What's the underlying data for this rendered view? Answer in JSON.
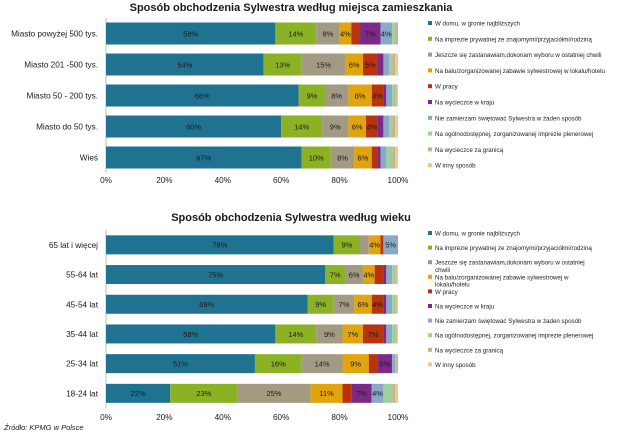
{
  "source": "Źródło: KPMG w Polsce",
  "chart_data": [
    {
      "type": "bar",
      "orientation": "horizontal",
      "stacked": true,
      "title": "Sposób obchodzenia Sylwestra według miejsca zamieszkania",
      "categories": [
        "Miasto powyżej 500 tys.",
        "Miasto 201 -500 tys.",
        "Miasto 50 - 200 tys.",
        "Miasto do 50 tys.",
        "Wieś"
      ],
      "xlim": [
        0,
        100
      ],
      "xticks": [
        "0%",
        "20%",
        "40%",
        "60%",
        "80%",
        "100%"
      ],
      "legend_position": "right",
      "series": [
        {
          "name": "W domu, w gronie najbliższych",
          "color": "#1f7391",
          "values": [
            58,
            54,
            66,
            60,
            67
          ],
          "labels": [
            "58%",
            "54%",
            "66%",
            "60%",
            "67%"
          ]
        },
        {
          "name": "Na imprezie prywatnej ze znajomymi/przyjaciółmi/rodziną",
          "color": "#8bb124",
          "values": [
            14,
            13,
            9,
            14,
            10
          ],
          "labels": [
            "14%",
            "13%",
            "9%",
            "14%",
            "10%"
          ]
        },
        {
          "name": "Jeszcze się zastanawiam,dokonam wyboru w ostatniej chwili",
          "color": "#a29a82",
          "values": [
            8,
            15,
            8,
            9,
            8
          ],
          "labels": [
            "8%",
            "15%",
            "8%",
            "9%",
            "8%"
          ]
        },
        {
          "name": "Na balu/zorganizowanej zabawie sylwestrowej w lokalu/hotelu",
          "color": "#e0a40f",
          "values": [
            4,
            6,
            8,
            6,
            6
          ],
          "labels": [
            "4%",
            "6%",
            "8%",
            "6%",
            "6%"
          ]
        },
        {
          "name": "W pracy",
          "color": "#b8330e",
          "values": [
            3,
            5,
            4,
            4,
            2
          ],
          "labels": [
            "",
            "5%",
            "4%",
            "4%",
            ""
          ]
        },
        {
          "name": "Na wycieczce w kraju",
          "color": "#7b2a87",
          "values": [
            7,
            2,
            1,
            2,
            1
          ],
          "labels": [
            "7%",
            "",
            "",
            "",
            ""
          ]
        },
        {
          "name": "Nie zamierzam świętować Sylwestra w żaden sposób",
          "color": "#8aa9c6",
          "values": [
            4,
            2,
            2,
            2,
            2
          ],
          "labels": [
            "4%",
            "",
            "",
            "",
            ""
          ]
        },
        {
          "name": "Na ogólnodostępnej, zorganizowanej imprezie plenerowej",
          "color": "#9fd09c",
          "values": [
            1,
            1,
            1,
            1,
            2
          ],
          "labels": [
            "",
            "",
            "",
            "",
            ""
          ]
        },
        {
          "name": "Na wycieczce za granicą",
          "color": "#c4b591",
          "values": [
            1,
            1,
            0.5,
            1,
            1
          ],
          "labels": [
            "",
            "",
            "",
            "",
            ""
          ]
        },
        {
          "name": "W inny sposób",
          "color": "#f4c98c",
          "values": [
            0,
            1,
            0.5,
            1,
            1
          ],
          "labels": [
            "",
            "",
            "",
            "",
            ""
          ]
        }
      ]
    },
    {
      "type": "bar",
      "orientation": "horizontal",
      "stacked": true,
      "title": "Sposób obchodzenia Sylwestra według wieku",
      "categories": [
        "65 lat i więcej",
        "55-64 lat",
        "45-54 lat",
        "35-44 lat",
        "25-34 lat",
        "18-24 lat"
      ],
      "xlim": [
        0,
        100
      ],
      "xticks": [
        "0%",
        "20%",
        "40%",
        "60%",
        "80%",
        "100%"
      ],
      "legend_position": "right",
      "series": [
        {
          "name": "W domu, w gronie najbliższych",
          "color": "#1f7391",
          "values": [
            78,
            75,
            69,
            58,
            51,
            22
          ],
          "labels": [
            "78%",
            "75%",
            "69%",
            "58%",
            "51%",
            "22%"
          ]
        },
        {
          "name": "Na imprezie prywatnej ze znajomymi/przyjaciółmi/rodziną",
          "color": "#8bb124",
          "values": [
            9,
            7,
            9,
            14,
            16,
            23
          ],
          "labels": [
            "9%",
            "7%",
            "9%",
            "14%",
            "16%",
            "23%"
          ]
        },
        {
          "name": "Jeszcze się zastanawiam,dokonam wyboru w ostatniej chwili",
          "color": "#a29a82",
          "values": [
            3,
            6,
            7,
            9,
            14,
            25
          ],
          "labels": [
            "",
            "6%",
            "7%",
            "9%",
            "14%",
            "25%"
          ]
        },
        {
          "name": "Na balu/zorganizowanej zabawie sylwestrowej w lokalu/hotelu",
          "color": "#e0a40f",
          "values": [
            4,
            4,
            6,
            7,
            9,
            11
          ],
          "labels": [
            "4%",
            "4%",
            "6%",
            "7%",
            "9%",
            "11%"
          ]
        },
        {
          "name": "W pracy",
          "color": "#b8330e",
          "values": [
            1,
            3,
            4,
            7,
            3,
            3
          ],
          "labels": [
            "",
            "",
            "4%",
            "7%",
            "",
            ""
          ]
        },
        {
          "name": "Na wycieczce w kraju",
          "color": "#7b2a87",
          "values": [
            0,
            1,
            1,
            1,
            5,
            7
          ],
          "labels": [
            "",
            "",
            "",
            "",
            "5%",
            "7%"
          ]
        },
        {
          "name": "Nie zamierzam świętować Sylwestra w żaden sposób",
          "color": "#8aa9c6",
          "values": [
            5,
            2,
            2,
            2,
            1,
            4
          ],
          "labels": [
            "5%",
            "",
            "",
            "",
            "",
            "4%"
          ]
        },
        {
          "name": "Na ogólnodostępnej, zorganizowanej imprezie plenerowej",
          "color": "#9fd09c",
          "values": [
            0,
            1,
            1,
            1,
            0.5,
            3
          ],
          "labels": [
            "",
            "",
            "",
            "",
            "",
            ""
          ]
        },
        {
          "name": "Na wycieczce za granicą",
          "color": "#c4b591",
          "values": [
            0,
            0.5,
            0.5,
            0.5,
            0.5,
            1
          ],
          "labels": [
            "",
            "",
            "",
            "",
            "",
            ""
          ]
        },
        {
          "name": "W inny sposób",
          "color": "#f4c98c",
          "values": [
            0,
            0.5,
            0.5,
            0.5,
            0,
            1
          ],
          "labels": [
            "",
            "",
            "",
            "",
            "",
            ""
          ]
        }
      ]
    }
  ]
}
